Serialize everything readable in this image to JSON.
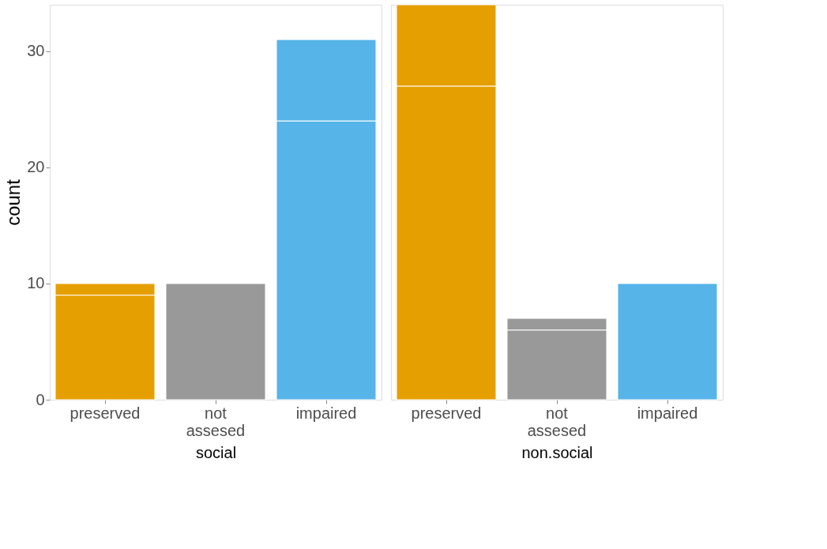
{
  "chart_data": [
    {
      "type": "bar",
      "title": "social",
      "ylabel": "count",
      "categories": [
        "preserved",
        "not assesed",
        "impaired"
      ],
      "stacked": true,
      "ylim": [
        0,
        34
      ],
      "yticks": [
        0,
        10,
        20,
        30
      ],
      "grid": false,
      "series": [
        {
          "colors": [
            "#e69f00",
            "#999999",
            "#56b4e9"
          ],
          "values": [
            9,
            10,
            24
          ]
        },
        {
          "colors": [
            "#e69f00",
            "#999999",
            "#56b4e9"
          ],
          "values": [
            1,
            0,
            7
          ]
        }
      ]
    },
    {
      "type": "bar",
      "title": "non.social",
      "categories": [
        "preserved",
        "not assesed",
        "impaired"
      ],
      "stacked": true,
      "ylim": [
        0,
        34
      ],
      "yticks": [
        0,
        10,
        20,
        30
      ],
      "grid": false,
      "tick_labels": "x",
      "series": [
        {
          "colors": [
            "#e69f00",
            "#999999",
            "#56b4e9"
          ],
          "values": [
            27,
            6,
            10
          ]
        },
        {
          "colors": [
            "#e69f00",
            "#999999",
            "#56b4e9"
          ],
          "values": [
            7,
            1,
            0
          ]
        }
      ]
    }
  ]
}
